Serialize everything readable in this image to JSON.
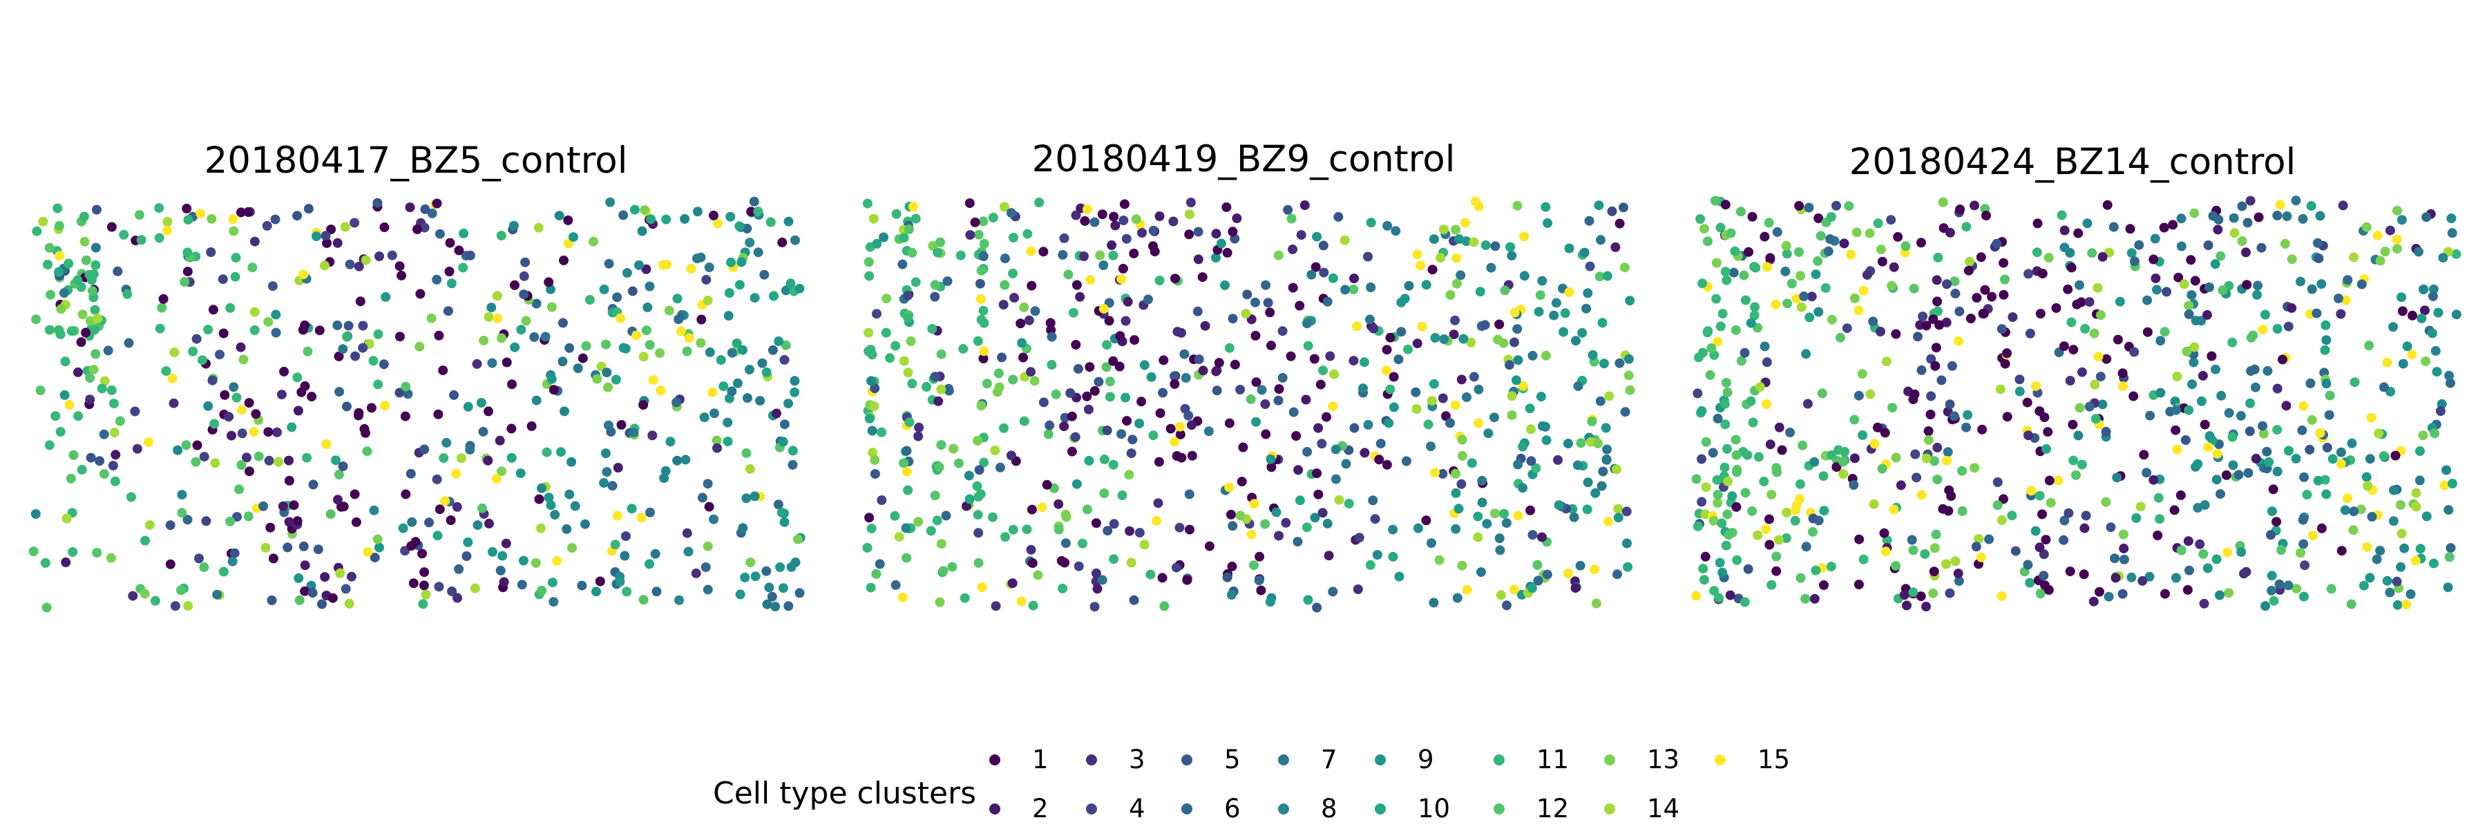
{
  "chart_data": {
    "type": "scatter",
    "panels": [
      {
        "title": "20180417_BZ5_control",
        "seed": 5,
        "profile": {
          "left_lobe": true,
          "stripes": false,
          "point_count": 720
        }
      },
      {
        "title": "20180419_BZ9_control",
        "seed": 9,
        "profile": {
          "left_lobe": false,
          "stripes": true,
          "point_count": 800
        }
      },
      {
        "title": "20180424_BZ14_control",
        "seed": 14,
        "profile": {
          "left_lobe": false,
          "stripes": false,
          "point_count": 860
        }
      }
    ],
    "legend": {
      "title": "Cell type clusters",
      "placement": "bottom-center",
      "items": [
        {
          "label": "1",
          "color": "#440154"
        },
        {
          "label": "2",
          "color": "#481a6c"
        },
        {
          "label": "3",
          "color": "#472f7d"
        },
        {
          "label": "4",
          "color": "#414487"
        },
        {
          "label": "5",
          "color": "#39568c"
        },
        {
          "label": "6",
          "color": "#31688e"
        },
        {
          "label": "7",
          "color": "#2a788e"
        },
        {
          "label": "8",
          "color": "#23888e"
        },
        {
          "label": "9",
          "color": "#1f988b"
        },
        {
          "label": "10",
          "color": "#22a884"
        },
        {
          "label": "11",
          "color": "#35b779"
        },
        {
          "label": "12",
          "color": "#54c568"
        },
        {
          "label": "13",
          "color": "#7ad151"
        },
        {
          "label": "14",
          "color": "#a5db36"
        },
        {
          "label": "15",
          "color": "#fde725"
        }
      ]
    },
    "axes_visible": false,
    "grid": false
  }
}
